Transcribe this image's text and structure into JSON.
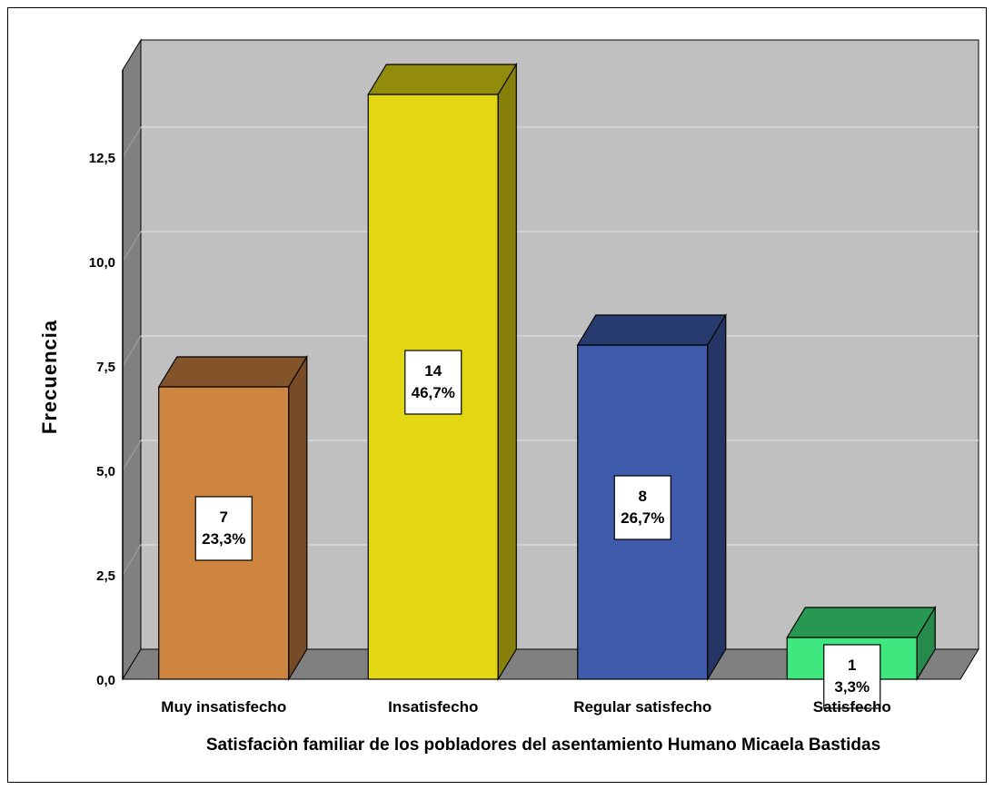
{
  "chart_data": {
    "type": "bar",
    "categories": [
      "Muy insatisfecho",
      "Insatisfecho",
      "Regular satisfecho",
      "Satisfecho"
    ],
    "values": [
      7,
      14,
      8,
      1
    ],
    "percent_labels": [
      "23,3%",
      "46,7%",
      "26,7%",
      "3,3%"
    ],
    "count_labels": [
      "7",
      "14",
      "8",
      "1"
    ],
    "xlabel": "Satisfaciòn familiar de los pobladores del asentamiento Humano Micaela Bastidas",
    "ylabel": "Frecuencia",
    "ylim": [
      0,
      15
    ],
    "yticks": [
      0,
      2.5,
      5,
      7.5,
      10,
      12.5
    ],
    "ytick_labels": [
      "0,0",
      "2,5",
      "5,0",
      "7,5",
      "10,0",
      "12,5"
    ],
    "grid": true,
    "style": "3d",
    "colors": {
      "bars": [
        "#cd853f",
        "#e2d712",
        "#3f5bab",
        "#3ee87f"
      ],
      "bar_tops": [
        "#83532a",
        "#938b0c",
        "#283b6f",
        "#289752"
      ],
      "bar_sides": [
        "#774b26",
        "#87800b",
        "#253665",
        "#258a4b"
      ],
      "wall": "#c0c0c0",
      "side_wall": "#808080",
      "floor": "#808080",
      "gridline": "#d8d8d8"
    }
  }
}
